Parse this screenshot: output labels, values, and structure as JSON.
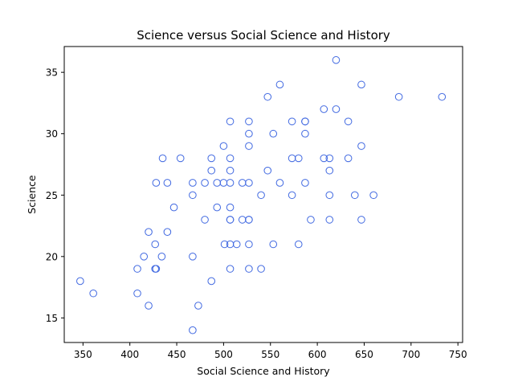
{
  "chart_data": {
    "type": "scatter",
    "title": "Science versus Social Science and History",
    "xlabel": "Social Science and History",
    "ylabel": "Science",
    "xlim": [
      330,
      755
    ],
    "ylim": [
      13,
      37.1
    ],
    "xticks": [
      350,
      400,
      450,
      500,
      550,
      600,
      650,
      700,
      750
    ],
    "yticks": [
      15,
      20,
      25,
      30,
      35
    ],
    "grid": false,
    "marker": "hollow-circle",
    "marker_color": "#4169e1",
    "points": [
      [
        347,
        18
      ],
      [
        361,
        17
      ],
      [
        408,
        19
      ],
      [
        408,
        17
      ],
      [
        415,
        20
      ],
      [
        420,
        22
      ],
      [
        420,
        16
      ],
      [
        427,
        21
      ],
      [
        427,
        19
      ],
      [
        428,
        19
      ],
      [
        428,
        26
      ],
      [
        434,
        20
      ],
      [
        435,
        28
      ],
      [
        440,
        26
      ],
      [
        440,
        22
      ],
      [
        447,
        24
      ],
      [
        454,
        28
      ],
      [
        467,
        26
      ],
      [
        467,
        25
      ],
      [
        467,
        20
      ],
      [
        473,
        16
      ],
      [
        467,
        14
      ],
      [
        480,
        26
      ],
      [
        480,
        23
      ],
      [
        487,
        28
      ],
      [
        487,
        27
      ],
      [
        487,
        18
      ],
      [
        493,
        26
      ],
      [
        493,
        24
      ],
      [
        500,
        29
      ],
      [
        500,
        26
      ],
      [
        501,
        21
      ],
      [
        507,
        31
      ],
      [
        507,
        28
      ],
      [
        507,
        27
      ],
      [
        507,
        26
      ],
      [
        507,
        24
      ],
      [
        507,
        23
      ],
      [
        507,
        23
      ],
      [
        507,
        21
      ],
      [
        507,
        19
      ],
      [
        514,
        21
      ],
      [
        520,
        26
      ],
      [
        520,
        23
      ],
      [
        527,
        31
      ],
      [
        527,
        30
      ],
      [
        527,
        29
      ],
      [
        527,
        26
      ],
      [
        527,
        23
      ],
      [
        527,
        23
      ],
      [
        527,
        21
      ],
      [
        527,
        19
      ],
      [
        540,
        25
      ],
      [
        540,
        19
      ],
      [
        547,
        33
      ],
      [
        547,
        27
      ],
      [
        553,
        30
      ],
      [
        553,
        21
      ],
      [
        560,
        34
      ],
      [
        560,
        26
      ],
      [
        573,
        31
      ],
      [
        573,
        28
      ],
      [
        573,
        25
      ],
      [
        580,
        28
      ],
      [
        580,
        21
      ],
      [
        587,
        31
      ],
      [
        587,
        31
      ],
      [
        587,
        30
      ],
      [
        587,
        26
      ],
      [
        593,
        23
      ],
      [
        607,
        32
      ],
      [
        607,
        28
      ],
      [
        613,
        28
      ],
      [
        613,
        27
      ],
      [
        613,
        25
      ],
      [
        613,
        23
      ],
      [
        620,
        36
      ],
      [
        620,
        32
      ],
      [
        633,
        31
      ],
      [
        633,
        28
      ],
      [
        640,
        25
      ],
      [
        647,
        34
      ],
      [
        647,
        29
      ],
      [
        647,
        23
      ],
      [
        660,
        25
      ],
      [
        687,
        33
      ],
      [
        733,
        33
      ]
    ]
  }
}
